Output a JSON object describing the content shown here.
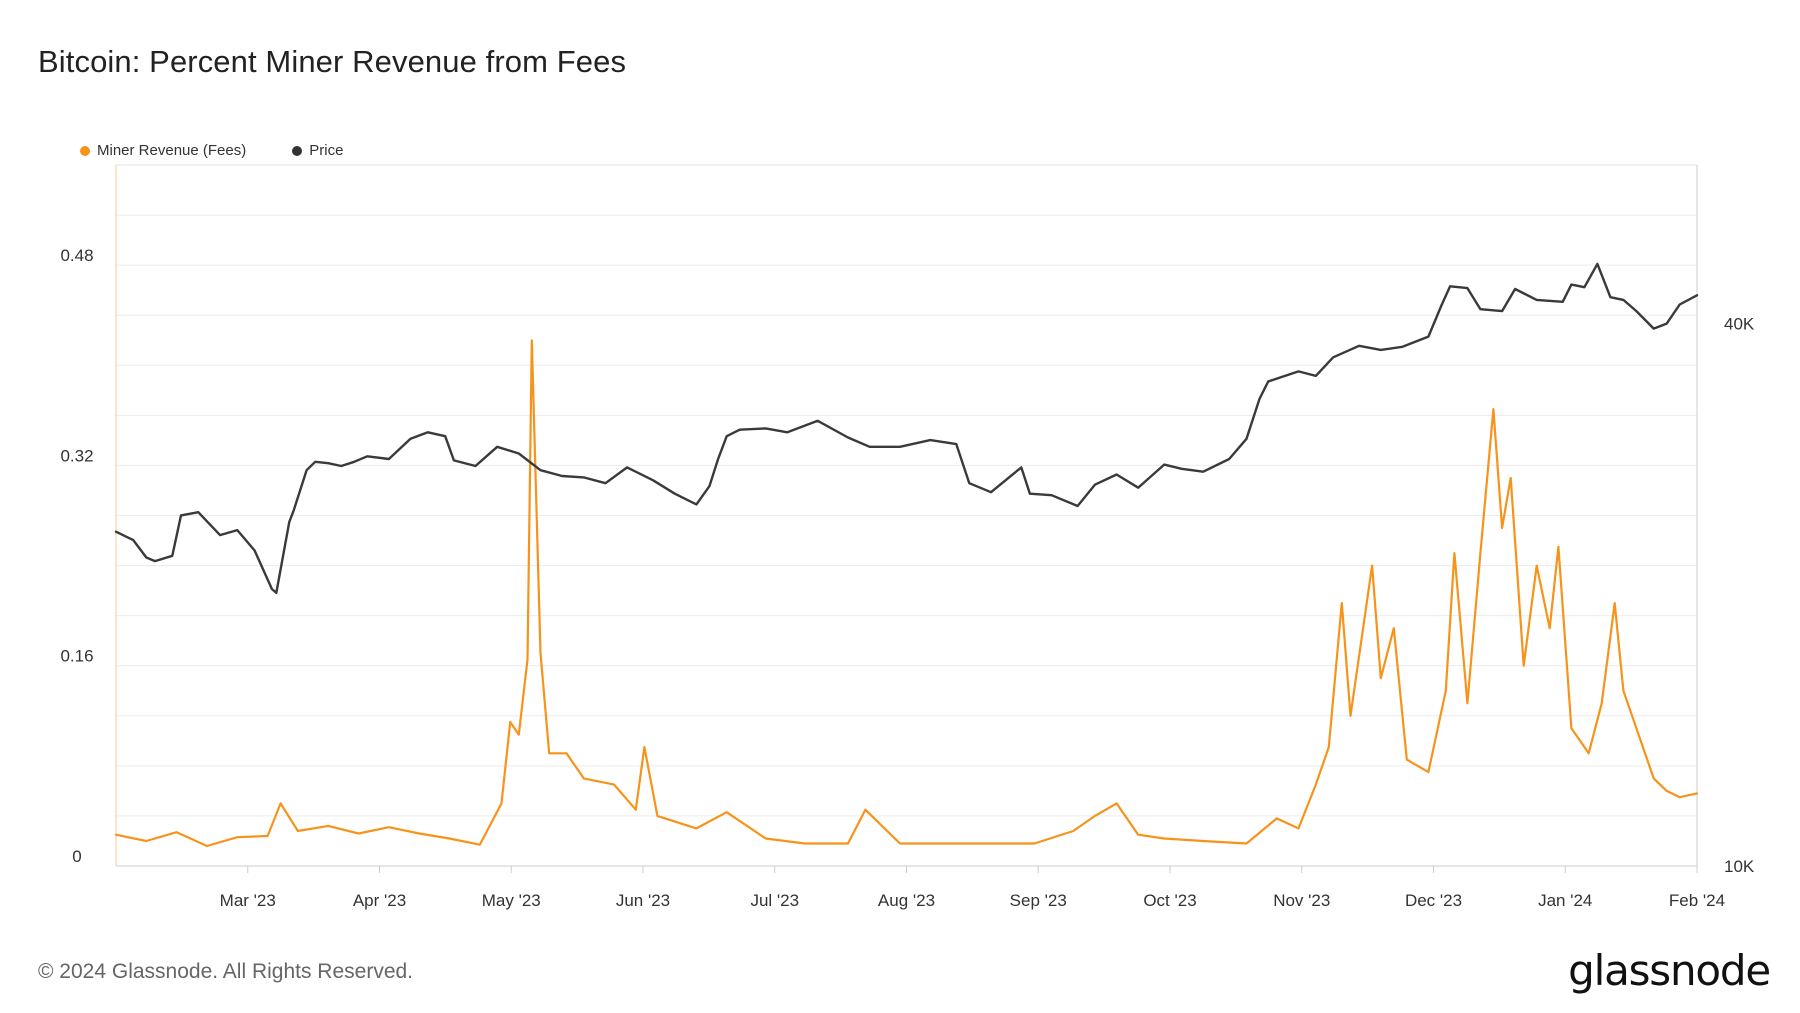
{
  "title": "Bitcoin: Percent Miner Revenue from Fees",
  "footer": "© 2024 Glassnode. All Rights Reserved.",
  "logo": "glassnode",
  "chart_data": {
    "type": "line",
    "title": "Bitcoin: Percent Miner Revenue from Fees",
    "legend_position": "top-left",
    "grid": true,
    "x_range": [
      "2023-02-01",
      "2024-02-01"
    ],
    "x_ticks": [
      "Mar '23",
      "Apr '23",
      "May '23",
      "Jun '23",
      "Jul '23",
      "Aug '23",
      "Sep '23",
      "Oct '23",
      "Nov '23",
      "Dec '23",
      "Jan '24",
      "Feb '24"
    ],
    "y_left": {
      "ticks": [
        "0",
        "0.16",
        "0.32",
        "0.48"
      ],
      "range": [
        0,
        0.56
      ]
    },
    "y_right": {
      "ticks": [
        "10K",
        "40K"
      ],
      "scale": "log",
      "range": [
        10000,
        60000
      ]
    },
    "colors": {
      "fees": "#f7931a",
      "price": "#3a3a3a",
      "grid": "#ececec",
      "axis_left": "#f9c98a",
      "axis_right": "#cccccc"
    },
    "series": [
      {
        "name": "Miner Revenue (Fees)",
        "axis": "left",
        "points": [
          [
            "2023-02-01",
            0.025
          ],
          [
            "2023-02-08",
            0.02
          ],
          [
            "2023-02-15",
            0.027
          ],
          [
            "2023-02-22",
            0.016
          ],
          [
            "2023-03-01",
            0.023
          ],
          [
            "2023-03-08",
            0.024
          ],
          [
            "2023-03-11",
            0.05
          ],
          [
            "2023-03-15",
            0.028
          ],
          [
            "2023-03-22",
            0.032
          ],
          [
            "2023-03-29",
            0.026
          ],
          [
            "2023-04-05",
            0.031
          ],
          [
            "2023-04-12",
            0.026
          ],
          [
            "2023-04-19",
            0.022
          ],
          [
            "2023-04-26",
            0.017
          ],
          [
            "2023-05-01",
            0.05
          ],
          [
            "2023-05-03",
            0.115
          ],
          [
            "2023-05-05",
            0.105
          ],
          [
            "2023-05-07",
            0.165
          ],
          [
            "2023-05-08",
            0.42
          ],
          [
            "2023-05-10",
            0.17
          ],
          [
            "2023-05-12",
            0.09
          ],
          [
            "2023-05-16",
            0.09
          ],
          [
            "2023-05-20",
            0.07
          ],
          [
            "2023-05-27",
            0.065
          ],
          [
            "2023-06-01",
            0.045
          ],
          [
            "2023-06-03",
            0.095
          ],
          [
            "2023-06-06",
            0.04
          ],
          [
            "2023-06-15",
            0.03
          ],
          [
            "2023-06-22",
            0.043
          ],
          [
            "2023-07-01",
            0.022
          ],
          [
            "2023-07-10",
            0.018
          ],
          [
            "2023-07-20",
            0.018
          ],
          [
            "2023-07-24",
            0.045
          ],
          [
            "2023-08-01",
            0.018
          ],
          [
            "2023-08-15",
            0.018
          ],
          [
            "2023-09-01",
            0.018
          ],
          [
            "2023-09-10",
            0.028
          ],
          [
            "2023-09-15",
            0.04
          ],
          [
            "2023-09-20",
            0.05
          ],
          [
            "2023-09-25",
            0.025
          ],
          [
            "2023-10-01",
            0.022
          ],
          [
            "2023-10-10",
            0.02
          ],
          [
            "2023-10-20",
            0.018
          ],
          [
            "2023-10-27",
            0.038
          ],
          [
            "2023-11-01",
            0.03
          ],
          [
            "2023-11-05",
            0.065
          ],
          [
            "2023-11-08",
            0.095
          ],
          [
            "2023-11-11",
            0.21
          ],
          [
            "2023-11-13",
            0.12
          ],
          [
            "2023-11-18",
            0.24
          ],
          [
            "2023-11-20",
            0.15
          ],
          [
            "2023-11-23",
            0.19
          ],
          [
            "2023-11-26",
            0.085
          ],
          [
            "2023-12-01",
            0.075
          ],
          [
            "2023-12-05",
            0.14
          ],
          [
            "2023-12-07",
            0.25
          ],
          [
            "2023-12-10",
            0.13
          ],
          [
            "2023-12-13",
            0.25
          ],
          [
            "2023-12-16",
            0.365
          ],
          [
            "2023-12-18",
            0.27
          ],
          [
            "2023-12-20",
            0.31
          ],
          [
            "2023-12-23",
            0.16
          ],
          [
            "2023-12-26",
            0.24
          ],
          [
            "2023-12-29",
            0.19
          ],
          [
            "2023-12-31",
            0.255
          ],
          [
            "2024-01-03",
            0.11
          ],
          [
            "2024-01-07",
            0.09
          ],
          [
            "2024-01-10",
            0.13
          ],
          [
            "2024-01-13",
            0.21
          ],
          [
            "2024-01-15",
            0.14
          ],
          [
            "2024-01-18",
            0.11
          ],
          [
            "2024-01-22",
            0.07
          ],
          [
            "2024-01-25",
            0.06
          ],
          [
            "2024-01-28",
            0.055
          ],
          [
            "2024-02-01",
            0.058
          ]
        ]
      },
      {
        "name": "Price",
        "axis": "right",
        "points": [
          [
            "2023-02-01",
            23500
          ],
          [
            "2023-02-05",
            23000
          ],
          [
            "2023-02-08",
            22000
          ],
          [
            "2023-02-10",
            21800
          ],
          [
            "2023-02-14",
            22100
          ],
          [
            "2023-02-16",
            24500
          ],
          [
            "2023-02-20",
            24700
          ],
          [
            "2023-02-25",
            23300
          ],
          [
            "2023-03-01",
            23600
          ],
          [
            "2023-03-05",
            22400
          ],
          [
            "2023-03-09",
            20300
          ],
          [
            "2023-03-10",
            20100
          ],
          [
            "2023-03-13",
            24100
          ],
          [
            "2023-03-14",
            24800
          ],
          [
            "2023-03-17",
            27500
          ],
          [
            "2023-03-19",
            28100
          ],
          [
            "2023-03-22",
            28000
          ],
          [
            "2023-03-25",
            27800
          ],
          [
            "2023-03-28",
            28100
          ],
          [
            "2023-03-31",
            28500
          ],
          [
            "2023-04-05",
            28300
          ],
          [
            "2023-04-10",
            29800
          ],
          [
            "2023-04-14",
            30300
          ],
          [
            "2023-04-18",
            30000
          ],
          [
            "2023-04-20",
            28200
          ],
          [
            "2023-04-25",
            27800
          ],
          [
            "2023-04-30",
            29200
          ],
          [
            "2023-05-05",
            28700
          ],
          [
            "2023-05-10",
            27500
          ],
          [
            "2023-05-15",
            27100
          ],
          [
            "2023-05-20",
            27000
          ],
          [
            "2023-05-25",
            26600
          ],
          [
            "2023-05-30",
            27700
          ],
          [
            "2023-06-05",
            26800
          ],
          [
            "2023-06-10",
            25900
          ],
          [
            "2023-06-15",
            25200
          ],
          [
            "2023-06-18",
            26400
          ],
          [
            "2023-06-20",
            28300
          ],
          [
            "2023-06-22",
            30000
          ],
          [
            "2023-06-25",
            30500
          ],
          [
            "2023-07-01",
            30600
          ],
          [
            "2023-07-06",
            30300
          ],
          [
            "2023-07-13",
            31200
          ],
          [
            "2023-07-20",
            29900
          ],
          [
            "2023-07-25",
            29200
          ],
          [
            "2023-08-01",
            29200
          ],
          [
            "2023-08-08",
            29700
          ],
          [
            "2023-08-14",
            29400
          ],
          [
            "2023-08-17",
            26600
          ],
          [
            "2023-08-22",
            26000
          ],
          [
            "2023-08-29",
            27700
          ],
          [
            "2023-08-31",
            25900
          ],
          [
            "2023-09-05",
            25800
          ],
          [
            "2023-09-11",
            25100
          ],
          [
            "2023-09-15",
            26500
          ],
          [
            "2023-09-20",
            27200
          ],
          [
            "2023-09-25",
            26300
          ],
          [
            "2023-10-01",
            27900
          ],
          [
            "2023-10-05",
            27600
          ],
          [
            "2023-10-10",
            27400
          ],
          [
            "2023-10-16",
            28300
          ],
          [
            "2023-10-20",
            29800
          ],
          [
            "2023-10-23",
            33000
          ],
          [
            "2023-10-25",
            34500
          ],
          [
            "2023-11-01",
            35400
          ],
          [
            "2023-11-05",
            35000
          ],
          [
            "2023-11-09",
            36700
          ],
          [
            "2023-11-15",
            37800
          ],
          [
            "2023-11-20",
            37400
          ],
          [
            "2023-11-25",
            37700
          ],
          [
            "2023-12-01",
            38700
          ],
          [
            "2023-12-04",
            41900
          ],
          [
            "2023-12-06",
            44000
          ],
          [
            "2023-12-10",
            43800
          ],
          [
            "2023-12-13",
            41500
          ],
          [
            "2023-12-18",
            41300
          ],
          [
            "2023-12-21",
            43700
          ],
          [
            "2023-12-26",
            42500
          ],
          [
            "2024-01-01",
            42300
          ],
          [
            "2024-01-03",
            44200
          ],
          [
            "2024-01-06",
            43900
          ],
          [
            "2024-01-09",
            46600
          ],
          [
            "2024-01-12",
            42800
          ],
          [
            "2024-01-15",
            42500
          ],
          [
            "2024-01-18",
            41300
          ],
          [
            "2024-01-22",
            39500
          ],
          [
            "2024-01-25",
            40000
          ],
          [
            "2024-01-28",
            42000
          ],
          [
            "2024-02-01",
            43000
          ]
        ]
      }
    ]
  }
}
